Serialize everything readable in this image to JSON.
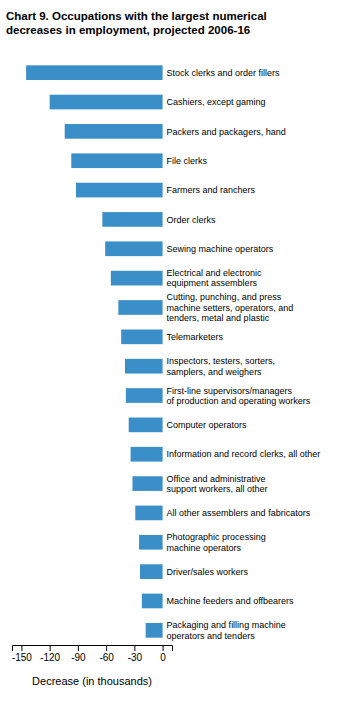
{
  "chart_data": {
    "type": "bar",
    "orientation": "horizontal",
    "title": "Chart 9.  Occupations with the largest numerical\ndecreases in employment, projected 2006-16",
    "categories": [
      "Stock clerks and order fillers",
      "Cashiers, except gaming",
      "Packers and packagers, hand",
      "File clerks",
      "Farmers and ranchers",
      "Order clerks",
      "Sewing machine operators",
      "Electrical and electronic\nequipment assemblers",
      "Cutting, punching, and press\nmachine setters, operators, and\ntenders, metal and plastic",
      "Telemarketers",
      "Inspectors, testers, sorters,\nsamplers, and weighers",
      "First-line supervisors/managers\nof production and operating workers",
      "Computer operators",
      "Information and record clerks, all other",
      "Office and administrative\nsupport workers, all other",
      "All other assemblers and fabricators",
      "Photographic processing\nmachine operators",
      "Driver/sales workers",
      "Machine feeders and offbearers",
      "Packaging and filling machine\noperators and tenders"
    ],
    "values": [
      -145,
      -120,
      -104,
      -97,
      -92,
      -64,
      -61,
      -55,
      -47,
      -44,
      -40,
      -39,
      -36,
      -34,
      -32,
      -29,
      -25,
      -24,
      -22,
      -18
    ],
    "color": "#3a8fc9",
    "xlabel": "Decrease (in thousands)",
    "xlim": [
      -160,
      10
    ],
    "xticks": [
      -150,
      -120,
      -90,
      -60,
      -30,
      0
    ],
    "grid": false
  }
}
